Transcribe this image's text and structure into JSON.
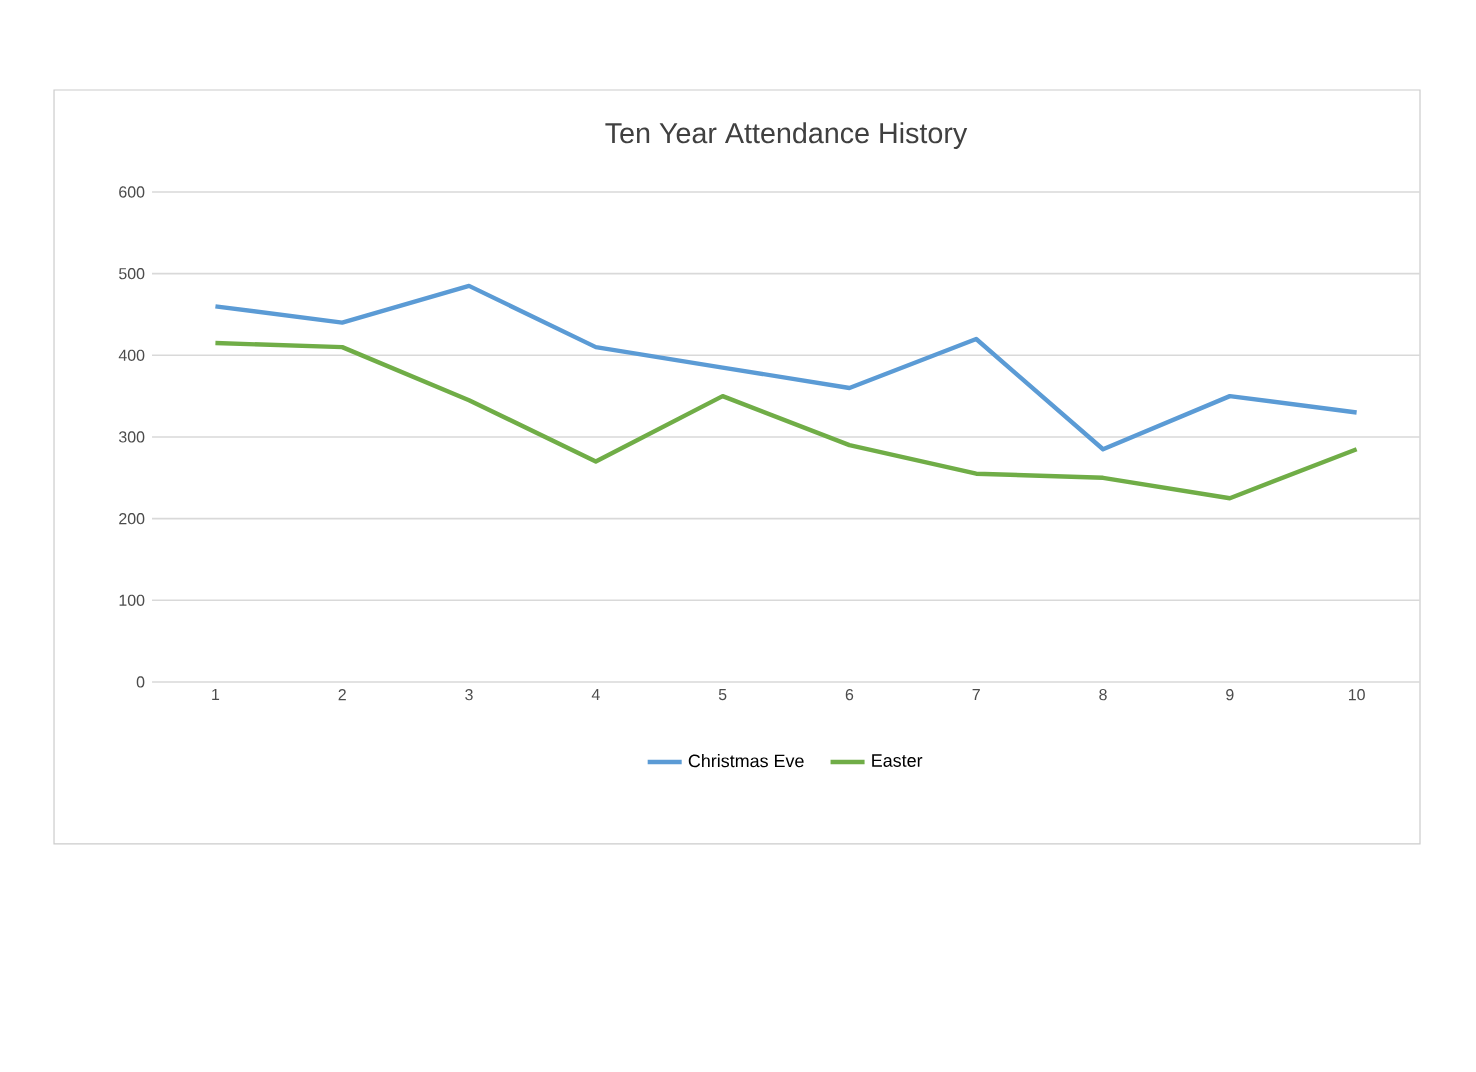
{
  "chart_data": {
    "type": "line",
    "title": "Ten Year Attendance History",
    "categories": [
      "1",
      "2",
      "3",
      "4",
      "5",
      "6",
      "7",
      "8",
      "9",
      "10"
    ],
    "series": [
      {
        "name": "Christmas Eve",
        "color": "#5b9bd5",
        "values": [
          460,
          440,
          485,
          410,
          385,
          360,
          420,
          285,
          350,
          330
        ]
      },
      {
        "name": "Easter",
        "color": "#70ad47",
        "values": [
          415,
          410,
          345,
          270,
          350,
          290,
          255,
          250,
          225,
          285
        ]
      }
    ],
    "ylim": [
      0,
      600
    ],
    "yticks": [
      0,
      100,
      200,
      300,
      400,
      500,
      600
    ],
    "grid": "y",
    "legend": "bottom",
    "marker": "none",
    "line_style": "solid"
  }
}
